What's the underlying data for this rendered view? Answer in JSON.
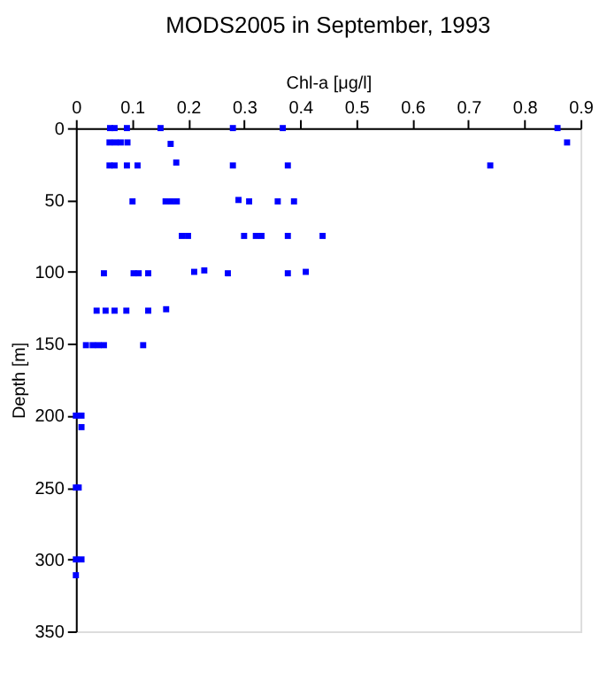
{
  "chart_data": {
    "type": "scatter",
    "title": "MODS2005 in September, 1993",
    "xlabel": "Chl-a [μg/l]",
    "ylabel": "Depth [m]",
    "x": [
      0.061,
      0.069,
      0.091,
      0.151,
      0.28,
      0.369,
      0.859,
      0.06,
      0.07,
      0.08,
      0.092,
      0.169,
      0.876,
      0.06,
      0.069,
      0.091,
      0.11,
      0.179,
      0.28,
      0.378,
      0.739,
      0.101,
      0.16,
      0.17,
      0.18,
      0.29,
      0.309,
      0.36,
      0.389,
      0.189,
      0.2,
      0.3,
      0.321,
      0.331,
      0.378,
      0.44,
      0.05,
      0.103,
      0.112,
      0.129,
      0.211,
      0.229,
      0.271,
      0.378,
      0.41,
      0.037,
      0.053,
      0.069,
      0.09,
      0.129,
      0.161,
      0.018,
      0.03,
      0.04,
      0.05,
      0.12,
      0.0,
      0.01,
      0.01,
      0.0,
      0.005,
      0.0,
      0.01,
      0.0
    ],
    "values": [
      0,
      0,
      0,
      0,
      0,
      0,
      0,
      10,
      10,
      10,
      10,
      11,
      10,
      26,
      26,
      26,
      26,
      24,
      26,
      26,
      26,
      51,
      51,
      51,
      51,
      50,
      51,
      51,
      51,
      75,
      75,
      75,
      75,
      75,
      75,
      75,
      101,
      101,
      101,
      101,
      100,
      99,
      101,
      101,
      100,
      127,
      127,
      127,
      127,
      127,
      126,
      151,
      151,
      151,
      151,
      151,
      200,
      200,
      208,
      250,
      250,
      300,
      300,
      311
    ],
    "color": "#0000ff",
    "marker": "square",
    "xlim": [
      0,
      0.9
    ],
    "xticks": [
      0,
      0.1,
      0.2,
      0.3,
      0.4,
      0.5,
      0.6,
      0.7,
      0.8,
      0.9
    ],
    "ylim": [
      350,
      0
    ],
    "yticks": [
      0,
      50,
      100,
      150,
      200,
      250,
      300,
      350
    ],
    "grid": false
  }
}
